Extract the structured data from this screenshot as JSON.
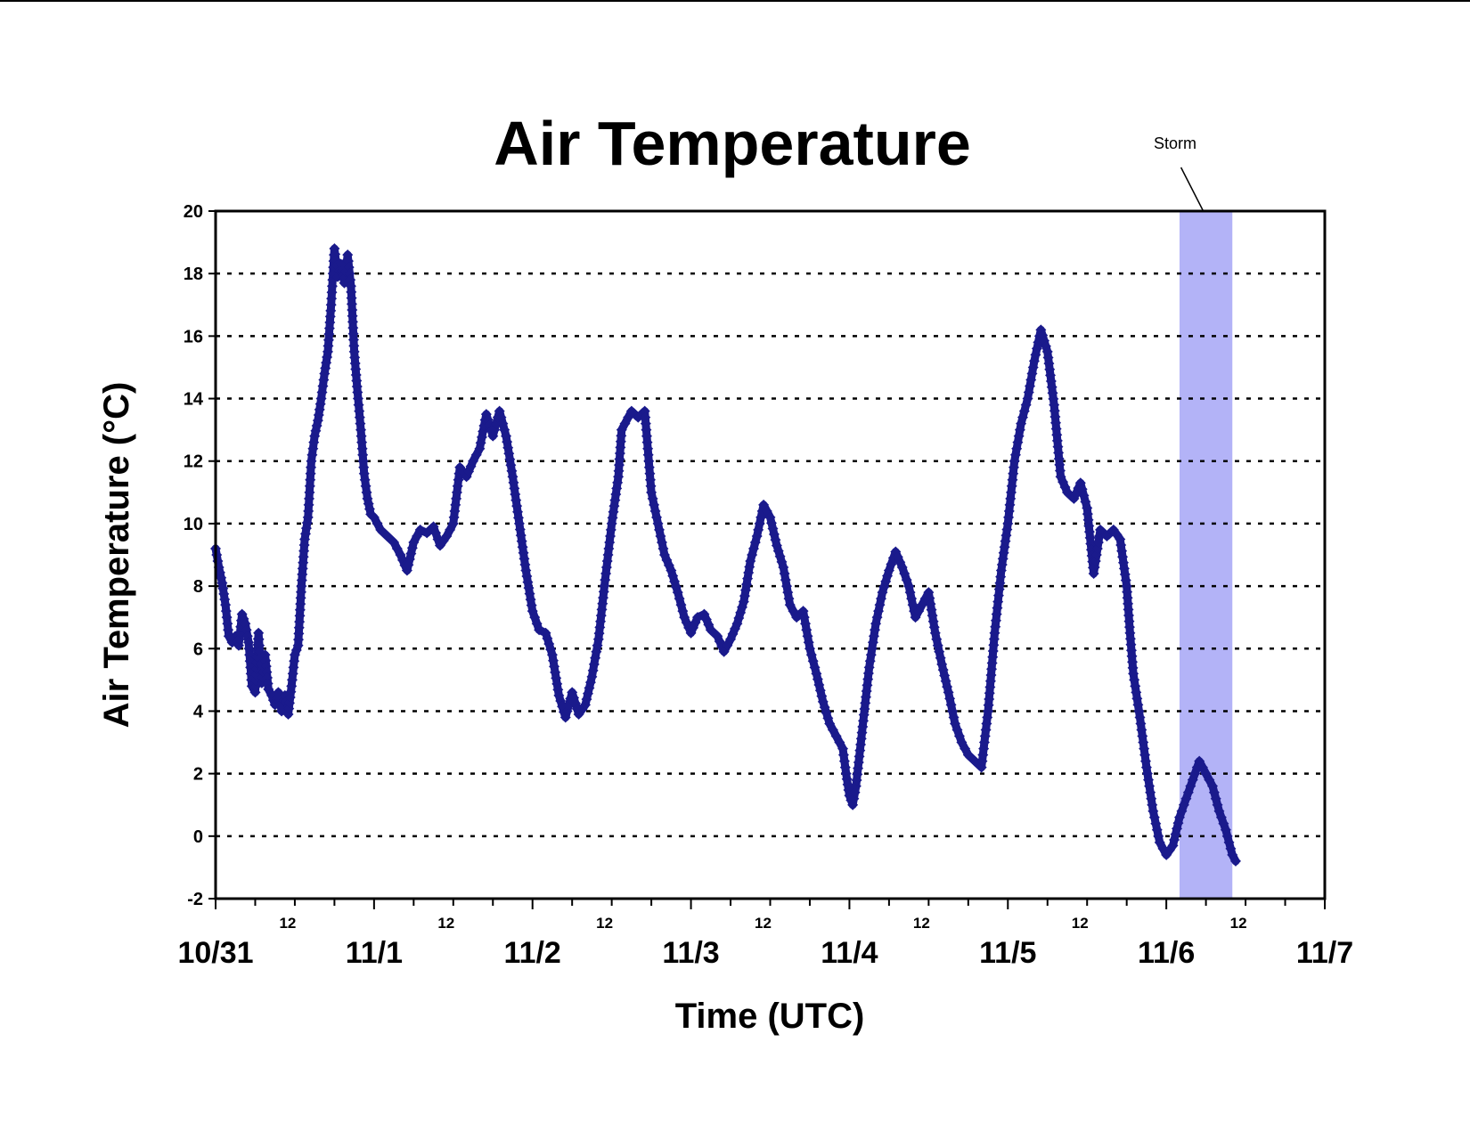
{
  "chart_data": {
    "type": "scatter",
    "title": "Air Temperature",
    "xlabel": "Time (UTC)",
    "ylabel": "Air Temperature (°C)",
    "ylim": [
      -2,
      20
    ],
    "yticks": [
      -2,
      0,
      2,
      4,
      6,
      8,
      10,
      12,
      14,
      16,
      18,
      20
    ],
    "xlim_hours": [
      0,
      168
    ],
    "x_day_labels": [
      "10/31",
      "11/1",
      "11/2",
      "11/3",
      "11/4",
      "11/5",
      "11/6",
      "11/7"
    ],
    "x_midday_label": "12",
    "grid": "horizontal dotted",
    "legend": "none",
    "annotation": {
      "text": "Storm",
      "x_start_hours": 146,
      "x_end_hours": 154
    },
    "colors": {
      "series": "#1a1a8c",
      "storm_band": "#b3b3f7",
      "grid": "#000000"
    },
    "series": [
      {
        "values": [
          [
            0,
            9.2
          ],
          [
            0.5,
            8.6
          ],
          [
            1,
            8.1
          ],
          [
            1.5,
            7.4
          ],
          [
            2,
            6.4
          ],
          [
            2.5,
            6.2
          ],
          [
            3,
            6.4
          ],
          [
            3.5,
            6.1
          ],
          [
            4,
            7.1
          ],
          [
            4.5,
            6.8
          ],
          [
            5,
            6.2
          ],
          [
            5.5,
            4.8
          ],
          [
            6,
            4.6
          ],
          [
            6.5,
            6.5
          ],
          [
            7,
            4.9
          ],
          [
            7.5,
            5.8
          ],
          [
            8,
            4.7
          ],
          [
            8.5,
            4.5
          ],
          [
            9,
            4.2
          ],
          [
            9.5,
            4.6
          ],
          [
            10,
            4.0
          ],
          [
            10.5,
            4.5
          ],
          [
            11,
            3.9
          ],
          [
            11.5,
            4.8
          ],
          [
            12,
            5.8
          ],
          [
            12.5,
            6.1
          ],
          [
            13,
            8.0
          ],
          [
            13.5,
            9.5
          ],
          [
            14,
            10.2
          ],
          [
            14.5,
            12.0
          ],
          [
            15,
            12.8
          ],
          [
            15.5,
            13.3
          ],
          [
            16,
            14.0
          ],
          [
            16.5,
            14.8
          ],
          [
            17,
            15.5
          ],
          [
            17.5,
            17.0
          ],
          [
            18,
            18.8
          ],
          [
            18.5,
            17.9
          ],
          [
            19,
            18.3
          ],
          [
            19.5,
            17.7
          ],
          [
            20,
            18.6
          ],
          [
            20.5,
            17.6
          ],
          [
            21,
            15.5
          ],
          [
            21.5,
            14.2
          ],
          [
            22,
            13.0
          ],
          [
            22.5,
            11.6
          ],
          [
            23,
            10.8
          ],
          [
            23.5,
            10.3
          ],
          [
            24,
            10.2
          ],
          [
            25,
            9.8
          ],
          [
            26,
            9.6
          ],
          [
            27,
            9.4
          ],
          [
            28,
            9.0
          ],
          [
            29,
            8.5
          ],
          [
            30,
            9.4
          ],
          [
            31,
            9.8
          ],
          [
            32,
            9.7
          ],
          [
            33,
            9.9
          ],
          [
            34,
            9.3
          ],
          [
            35,
            9.6
          ],
          [
            36,
            10.0
          ],
          [
            37,
            11.8
          ],
          [
            38,
            11.5
          ],
          [
            39,
            12.0
          ],
          [
            40,
            12.4
          ],
          [
            41,
            13.5
          ],
          [
            42,
            12.8
          ],
          [
            43,
            13.6
          ],
          [
            44,
            12.8
          ],
          [
            45,
            11.5
          ],
          [
            46,
            10.0
          ],
          [
            47,
            8.5
          ],
          [
            48,
            7.2
          ],
          [
            49,
            6.6
          ],
          [
            50,
            6.5
          ],
          [
            51,
            5.8
          ],
          [
            52,
            4.5
          ],
          [
            53,
            3.8
          ],
          [
            54,
            4.6
          ],
          [
            55,
            3.9
          ],
          [
            56,
            4.2
          ],
          [
            57,
            5.1
          ],
          [
            58,
            6.3
          ],
          [
            59,
            8.2
          ],
          [
            60,
            10.0
          ],
          [
            61,
            11.5
          ],
          [
            61.5,
            13.0
          ],
          [
            62,
            13.2
          ],
          [
            63,
            13.6
          ],
          [
            64,
            13.4
          ],
          [
            65,
            13.6
          ],
          [
            66,
            11.0
          ],
          [
            67,
            10.0
          ],
          [
            68,
            9.0
          ],
          [
            69,
            8.5
          ],
          [
            70,
            7.8
          ],
          [
            71,
            7.0
          ],
          [
            72,
            6.5
          ],
          [
            73,
            7.0
          ],
          [
            74,
            7.1
          ],
          [
            75,
            6.6
          ],
          [
            76,
            6.4
          ],
          [
            77,
            5.9
          ],
          [
            78,
            6.3
          ],
          [
            79,
            6.8
          ],
          [
            80,
            7.5
          ],
          [
            81,
            8.8
          ],
          [
            82,
            9.6
          ],
          [
            83,
            10.6
          ],
          [
            84,
            10.2
          ],
          [
            85,
            9.3
          ],
          [
            86,
            8.6
          ],
          [
            87,
            7.4
          ],
          [
            88,
            7.0
          ],
          [
            89,
            7.2
          ],
          [
            90,
            6.0
          ],
          [
            91,
            5.2
          ],
          [
            92,
            4.3
          ],
          [
            93,
            3.6
          ],
          [
            94,
            3.2
          ],
          [
            95,
            2.8
          ],
          [
            95.5,
            2.0
          ],
          [
            96,
            1.3
          ],
          [
            96.5,
            1.0
          ],
          [
            97,
            1.6
          ],
          [
            98,
            3.5
          ],
          [
            99,
            5.4
          ],
          [
            100,
            6.8
          ],
          [
            101,
            7.8
          ],
          [
            102,
            8.5
          ],
          [
            103,
            9.1
          ],
          [
            104,
            8.6
          ],
          [
            105,
            8.0
          ],
          [
            106,
            7.0
          ],
          [
            107,
            7.4
          ],
          [
            108,
            7.8
          ],
          [
            109,
            6.5
          ],
          [
            110,
            5.5
          ],
          [
            111,
            4.6
          ],
          [
            112,
            3.6
          ],
          [
            113,
            3.0
          ],
          [
            114,
            2.6
          ],
          [
            115,
            2.4
          ],
          [
            116,
            2.2
          ],
          [
            117,
            4.0
          ],
          [
            118,
            6.5
          ],
          [
            119,
            8.5
          ],
          [
            120,
            10.0
          ],
          [
            121,
            12.0
          ],
          [
            122,
            13.2
          ],
          [
            123,
            14.0
          ],
          [
            124,
            15.2
          ],
          [
            125,
            16.2
          ],
          [
            126,
            15.5
          ],
          [
            127,
            13.8
          ],
          [
            128,
            11.5
          ],
          [
            129,
            11.0
          ],
          [
            130,
            10.8
          ],
          [
            131,
            11.3
          ],
          [
            132,
            10.5
          ],
          [
            133,
            8.4
          ],
          [
            134,
            9.8
          ],
          [
            135,
            9.6
          ],
          [
            136,
            9.8
          ],
          [
            137,
            9.5
          ],
          [
            138,
            8.0
          ],
          [
            138.5,
            6.5
          ],
          [
            139,
            5.2
          ],
          [
            140,
            3.8
          ],
          [
            141,
            2.2
          ],
          [
            142,
            0.8
          ],
          [
            143,
            -0.2
          ],
          [
            144,
            -0.6
          ],
          [
            145,
            -0.3
          ],
          [
            146,
            0.6
          ],
          [
            147,
            1.2
          ],
          [
            148,
            1.8
          ],
          [
            149,
            2.4
          ],
          [
            150,
            2.0
          ],
          [
            151,
            1.6
          ],
          [
            152,
            0.8
          ],
          [
            153,
            0.2
          ],
          [
            154,
            -0.6
          ],
          [
            154.5,
            -0.8
          ]
        ]
      }
    ]
  }
}
